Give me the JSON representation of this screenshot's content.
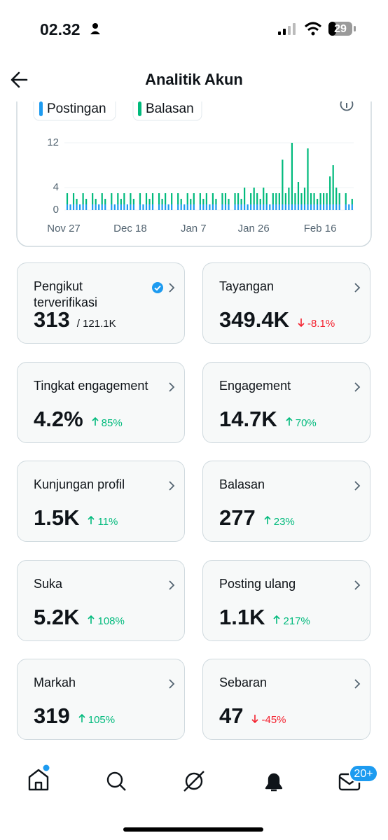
{
  "status_bar": {
    "time": "02.32",
    "battery": "29"
  },
  "header": {
    "title": "Analitik Akun"
  },
  "chart_data": {
    "type": "bar",
    "stacked": true,
    "categories": [
      "Nov 27",
      null,
      null,
      null,
      null,
      null,
      null,
      null,
      null,
      null,
      null,
      null,
      null,
      null,
      null,
      null,
      null,
      null,
      null,
      null,
      null,
      "Dec 18",
      null,
      null,
      null,
      null,
      null,
      null,
      null,
      null,
      null,
      null,
      null,
      null,
      null,
      null,
      null,
      null,
      null,
      null,
      null,
      "Jan 7",
      null,
      null,
      null,
      null,
      null,
      null,
      null,
      null,
      null,
      null,
      null,
      null,
      null,
      null,
      null,
      null,
      null,
      null,
      "Jan 26",
      null,
      null,
      null,
      null,
      null,
      null,
      null,
      null,
      null,
      null,
      null,
      null,
      null,
      null,
      null,
      null,
      null,
      null,
      null,
      null,
      "Feb 16",
      null,
      null,
      null,
      null,
      null,
      null,
      null,
      null,
      null
    ],
    "series": [
      {
        "name": "Postingan",
        "color": "#1d9bf0",
        "values": [
          1,
          1,
          1,
          1,
          1,
          1,
          1,
          0,
          1,
          1,
          1,
          1,
          1,
          0,
          1,
          1,
          1,
          1,
          1,
          1,
          1,
          1,
          0,
          1,
          1,
          1,
          1,
          1,
          0,
          1,
          1,
          1,
          1,
          1,
          0,
          1,
          1,
          1,
          1,
          1,
          1,
          0,
          1,
          1,
          1,
          1,
          1,
          1,
          0,
          1,
          1,
          1,
          0,
          1,
          1,
          1,
          1,
          1,
          1,
          1,
          1,
          1,
          1,
          1,
          1,
          1,
          1,
          1,
          1,
          1,
          1,
          1,
          1,
          1,
          1,
          1,
          1,
          1,
          1,
          1,
          1,
          1,
          1,
          1,
          1,
          1,
          1,
          0,
          1,
          1,
          1
        ]
      },
      {
        "name": "Balasan",
        "color": "#00ba7c",
        "values": [
          2,
          0,
          2,
          1,
          0,
          2,
          1,
          0,
          2,
          1,
          0,
          2,
          1,
          0,
          2,
          0,
          2,
          1,
          2,
          0,
          2,
          1,
          0,
          2,
          0,
          2,
          1,
          2,
          0,
          2,
          1,
          2,
          0,
          2,
          0,
          2,
          1,
          0,
          2,
          1,
          2,
          0,
          2,
          1,
          2,
          0,
          2,
          1,
          0,
          2,
          2,
          1,
          0,
          2,
          2,
          1,
          3,
          0,
          2,
          3,
          2,
          1,
          3,
          2,
          0,
          2,
          2,
          2,
          8,
          2,
          3,
          11,
          2,
          4,
          2,
          3,
          10,
          2,
          2,
          1,
          2,
          2,
          2,
          5,
          7,
          3,
          2,
          0,
          2,
          0,
          1
        ]
      }
    ],
    "ylim": [
      0,
      12
    ],
    "yticks": [
      0,
      4,
      12
    ],
    "grid": true
  },
  "cards": [
    {
      "title": "Pengikut terverifikasi",
      "value": "313",
      "total": "/ 121.1K"
    },
    {
      "title": "Tayangan",
      "value": "349.4K",
      "change": "-8.1%"
    },
    {
      "title": "Tingkat engagement",
      "value": "4.2%",
      "change": "85%"
    },
    {
      "title": "Engagement",
      "value": "14.7K",
      "change": "70%"
    },
    {
      "title": "Kunjungan profil",
      "value": "1.5K",
      "change": "11%"
    },
    {
      "title": "Balasan",
      "value": "277",
      "change": "23%"
    },
    {
      "title": "Suka",
      "value": "5.2K",
      "change": "108%"
    },
    {
      "title": "Posting ulang",
      "value": "1.1K",
      "change": "217%"
    },
    {
      "title": "Markah",
      "value": "319",
      "change": "105%"
    },
    {
      "title": "Sebaran",
      "value": "47",
      "change": "-45%"
    }
  ],
  "nav": {
    "badge": "20+"
  }
}
